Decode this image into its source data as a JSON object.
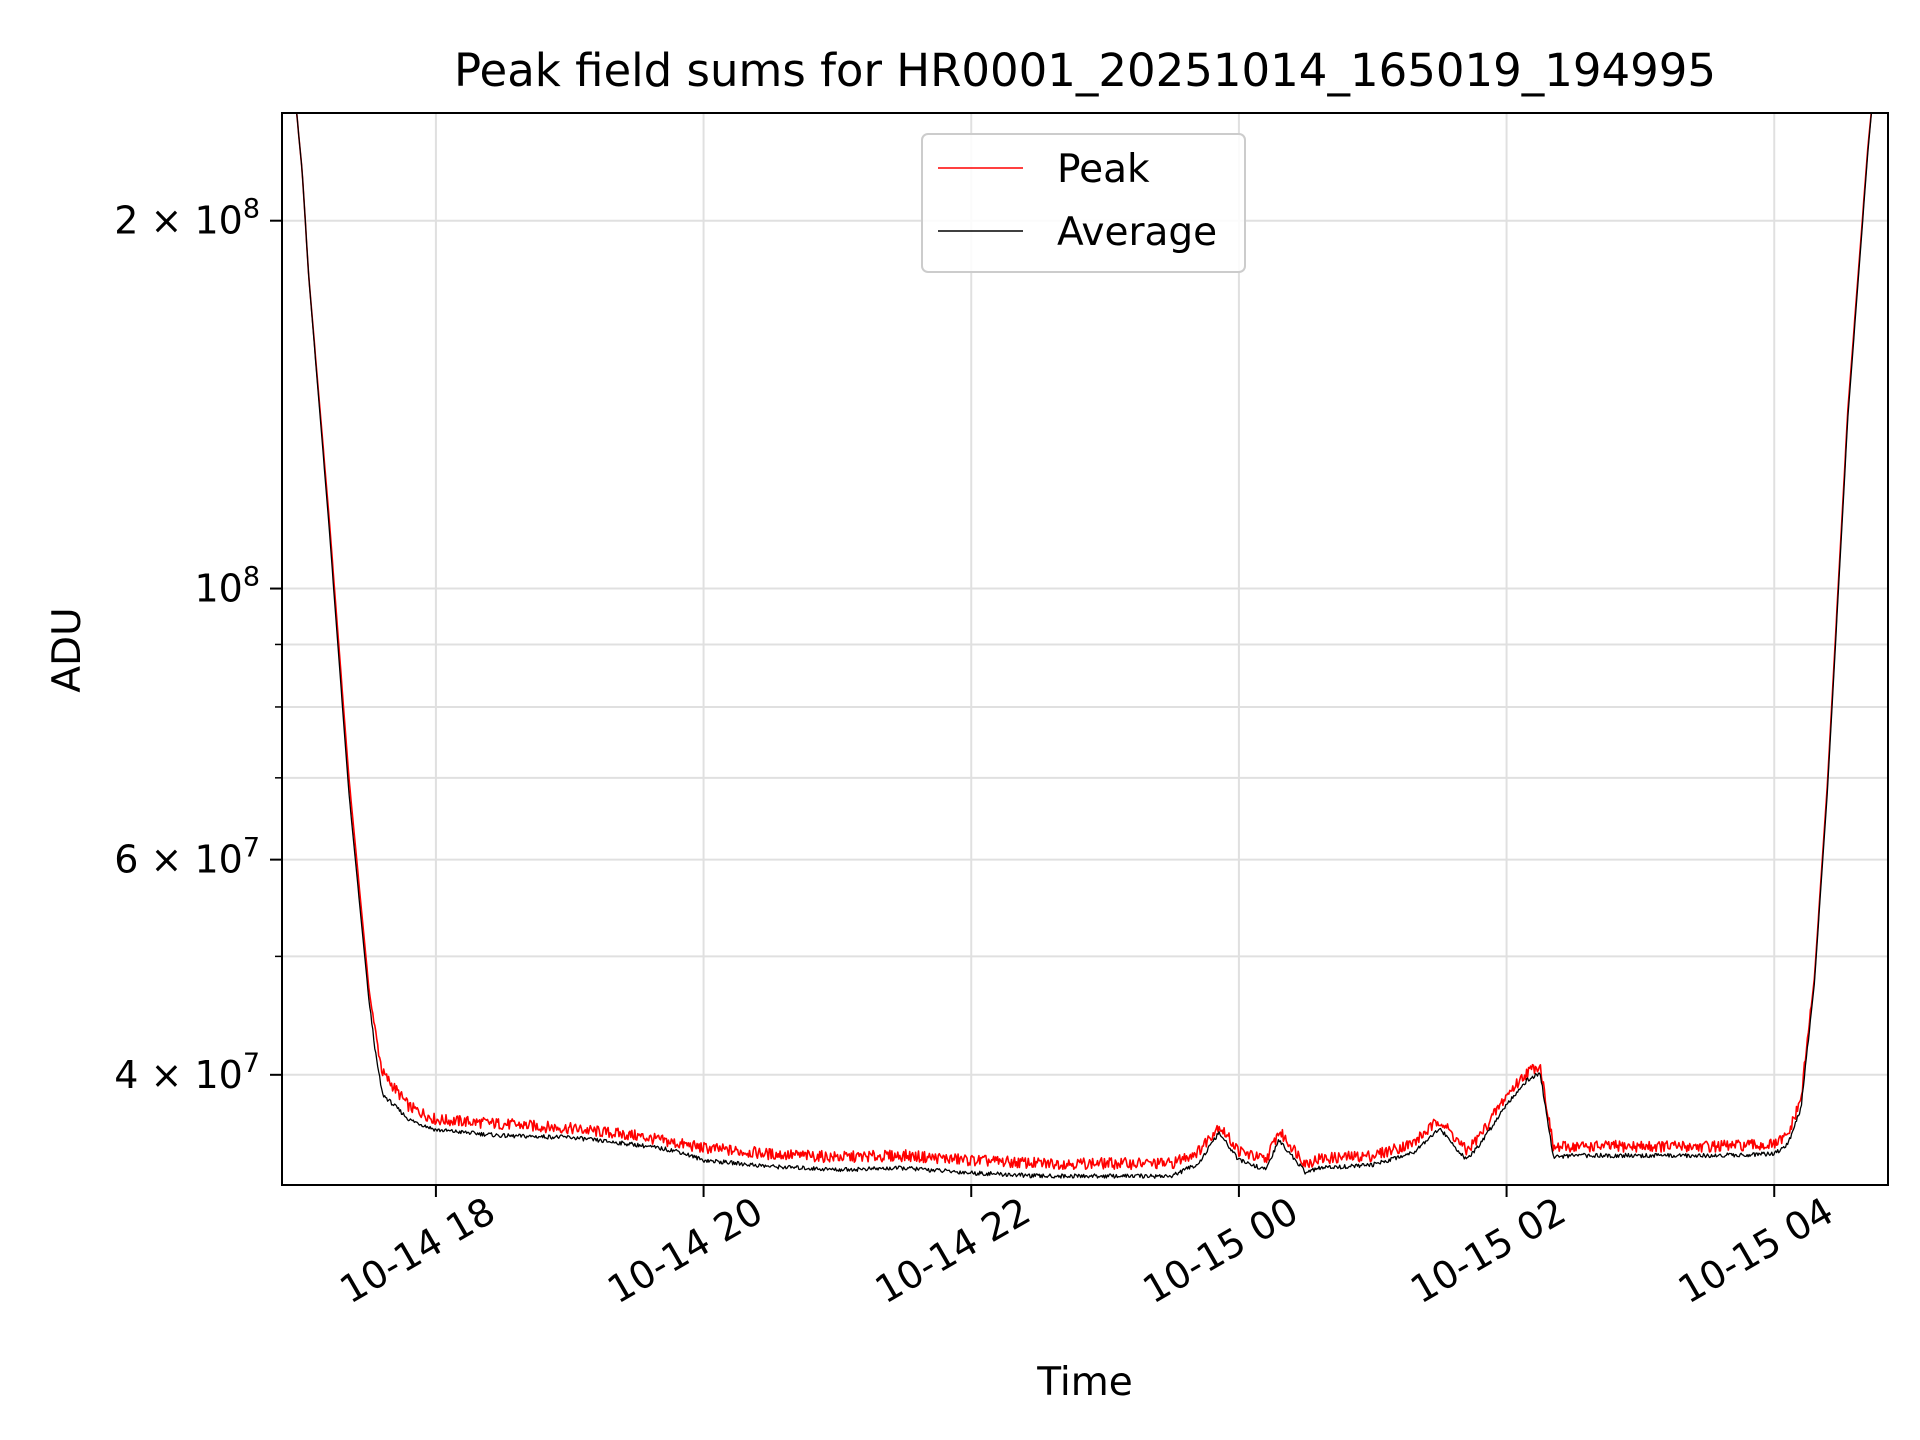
{
  "chart_data": {
    "type": "line",
    "title": "Peak field sums for HR0001_20251014_165019_194995",
    "xlabel": "Time",
    "ylabel": "ADU",
    "yscale": "log",
    "xlim_hours": [
      16.85,
      28.85
    ],
    "ylim": [
      32500000,
      245000000
    ],
    "grid": true,
    "legend_position": "upper center",
    "x_ticks": [
      {
        "hour": 18,
        "label": "10-14 18"
      },
      {
        "hour": 20,
        "label": "10-14 20"
      },
      {
        "hour": 22,
        "label": "10-14 22"
      },
      {
        "hour": 24,
        "label": "10-15 00"
      },
      {
        "hour": 26,
        "label": "10-15 02"
      },
      {
        "hour": 28,
        "label": "10-15 04"
      }
    ],
    "y_ticks": [
      {
        "value": 200000000,
        "mantissa": "2",
        "exponent": "8"
      },
      {
        "value": 100000000,
        "mantissa": "",
        "exponent": "8"
      },
      {
        "value": 60000000,
        "mantissa": "6",
        "exponent": "7"
      },
      {
        "value": 40000000,
        "mantissa": "4",
        "exponent": "7"
      }
    ],
    "y_minor_ticks": [
      50000000,
      70000000,
      80000000,
      90000000
    ],
    "series": [
      {
        "name": "Peak",
        "color": "#ff0000",
        "hours": [
          16.93,
          17.0,
          17.05,
          17.2,
          17.35,
          17.5,
          17.55,
          17.6,
          17.8,
          18.0,
          18.5,
          19.0,
          19.5,
          19.8,
          20.0,
          20.5,
          21.0,
          21.5,
          22.0,
          22.5,
          23.0,
          23.5,
          23.7,
          23.85,
          24.0,
          24.2,
          24.3,
          24.5,
          24.6,
          25.0,
          25.3,
          25.5,
          25.7,
          25.8,
          26.0,
          26.15,
          26.25,
          26.35,
          26.5,
          27.0,
          27.5,
          28.0,
          28.1,
          28.2,
          28.3,
          28.4,
          28.55,
          28.7,
          28.75
        ],
        "values": [
          265000000,
          220000000,
          180000000,
          115000000,
          70000000,
          47000000,
          43000000,
          40000000,
          37500000,
          36600000,
          36300000,
          36000000,
          35500000,
          35000000,
          34700000,
          34300000,
          34100000,
          34200000,
          33900000,
          33700000,
          33700000,
          33700000,
          34500000,
          36200000,
          34500000,
          33900000,
          35800000,
          33700000,
          34000000,
          34200000,
          35000000,
          36600000,
          34500000,
          35500000,
          38300000,
          40000000,
          40600000,
          34700000,
          34800000,
          34800000,
          34800000,
          34900000,
          35500000,
          38000000,
          48000000,
          70000000,
          140000000,
          230000000,
          262000000
        ]
      },
      {
        "name": "Average",
        "color": "#000000",
        "hours": [
          16.93,
          17.0,
          17.05,
          17.2,
          17.35,
          17.5,
          17.55,
          17.6,
          17.8,
          18.0,
          18.5,
          19.0,
          19.5,
          19.8,
          20.0,
          20.5,
          21.0,
          21.5,
          22.0,
          22.5,
          23.0,
          23.5,
          23.7,
          23.85,
          24.0,
          24.2,
          24.3,
          24.5,
          24.6,
          25.0,
          25.3,
          25.5,
          25.7,
          25.8,
          26.0,
          26.15,
          26.25,
          26.35,
          26.5,
          27.0,
          27.5,
          28.0,
          28.1,
          28.2,
          28.3,
          28.4,
          28.55,
          28.7,
          28.75
        ],
        "values": [
          265000000,
          220000000,
          180000000,
          113000000,
          68000000,
          46000000,
          41500000,
          38500000,
          36700000,
          36000000,
          35600000,
          35500000,
          35000000,
          34600000,
          34000000,
          33600000,
          33400000,
          33500000,
          33200000,
          33000000,
          33000000,
          33000000,
          33800000,
          35800000,
          34000000,
          33400000,
          35300000,
          33200000,
          33500000,
          33700000,
          34500000,
          36100000,
          34000000,
          35000000,
          37800000,
          39500000,
          40100000,
          34200000,
          34300000,
          34300000,
          34300000,
          34400000,
          35000000,
          37500000,
          47500000,
          69000000,
          138000000,
          228000000,
          262000000
        ]
      }
    ]
  }
}
